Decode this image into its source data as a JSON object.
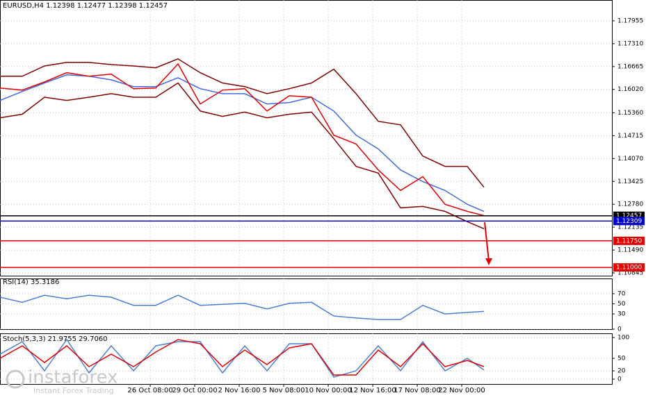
{
  "chart_data": [
    {
      "type": "line",
      "title": "EURUSD,H4  1.12398 1.12477 1.12398 1.12457",
      "x": [
        0,
        8,
        16,
        24,
        32,
        40,
        48,
        56,
        64,
        72,
        80,
        88,
        96,
        104,
        112,
        120,
        128,
        136,
        144,
        152,
        160,
        168,
        174
      ],
      "series": [
        {
          "color": "#800000",
          "values": [
            1.1639,
            1.1639,
            1.1668,
            1.1678,
            1.1678,
            1.1672,
            1.1668,
            1.1663,
            1.1688,
            1.1649,
            1.162,
            1.161,
            1.159,
            1.1604,
            1.162,
            1.1659,
            1.159,
            1.1512,
            1.1502,
            1.1414,
            1.1385,
            1.1385,
            1.1326
          ]
        },
        {
          "color": "#4169e1",
          "values": [
            1.1571,
            1.1596,
            1.162,
            1.1643,
            1.1639,
            1.1629,
            1.161,
            1.161,
            1.1635,
            1.1604,
            1.159,
            1.159,
            1.1561,
            1.1565,
            1.158,
            1.1541,
            1.1473,
            1.1434,
            1.1375,
            1.1342,
            1.1317,
            1.1278,
            1.1258
          ]
        },
        {
          "color": "#800000",
          "values": [
            1.1522,
            1.1532,
            1.158,
            1.1571,
            1.158,
            1.159,
            1.158,
            1.158,
            1.162,
            1.1541,
            1.1526,
            1.1538,
            1.1522,
            1.1532,
            1.1538,
            1.1463,
            1.1385,
            1.1366,
            1.1268,
            1.1272,
            1.1258,
            1.1229,
            1.1209
          ]
        },
        {
          "color": "#e00000",
          "values": [
            1.1606,
            1.16,
            1.1623,
            1.1649,
            1.1639,
            1.1645,
            1.1604,
            1.1606,
            1.1674,
            1.1561,
            1.16,
            1.1604,
            1.1541,
            1.1584,
            1.158,
            1.1473,
            1.1448,
            1.1375,
            1.1317,
            1.1356,
            1.1278,
            1.1258,
            1.1246
          ]
        }
      ],
      "xlim": [
        0,
        220
      ],
      "ylim": [
        1.10767,
        1.18541
      ],
      "grid": true,
      "yticks": [
        1.17955,
        {
          "value": 1.1731,
          "label": "1.17310"
        },
        1.16665,
        {
          "value": 1.1602,
          "label": "1.16020"
        },
        {
          "value": 1.1536,
          "label": "1.15360"
        },
        1.14715,
        {
          "value": 1.1407,
          "label": "1.14070"
        },
        1.13425,
        {
          "value": 1.1278,
          "label": "1.12780"
        },
        1.12135,
        {
          "value": 1.1149,
          "label": "1.11490"
        },
        1.10845
      ],
      "xticks": [
        {
          "value": 54,
          "label": "26 Oct 08:00"
        },
        {
          "value": 70,
          "label": "29 Oct 00:00"
        },
        {
          "value": 86,
          "label": "2 Nov 16:00"
        },
        {
          "value": 102,
          "label": "5 Nov 08:00"
        },
        {
          "value": 118,
          "label": "10 Nov 00:00"
        },
        {
          "value": 134,
          "label": "12 Nov 16:00"
        },
        {
          "value": 150,
          "label": "17 Nov 08:00"
        },
        {
          "value": 166,
          "label": "22 Nov 00:00"
        }
      ],
      "levels": [
        {
          "value": 1.12457,
          "label": "1.12457",
          "color": "#000000"
        },
        {
          "value": 1.12309,
          "label": "1.12309",
          "color": "#0000cd"
        },
        {
          "value": 1.1175,
          "label": "1.11750",
          "color": "#e00000"
        },
        {
          "value": 1.11,
          "label": "1.11000",
          "color": "#e00000"
        }
      ]
    },
    {
      "type": "line",
      "title": "RSI(14) 35.3186",
      "x": [
        0,
        8,
        16,
        24,
        32,
        40,
        48,
        56,
        64,
        72,
        80,
        88,
        96,
        104,
        112,
        120,
        128,
        136,
        144,
        152,
        160,
        168,
        174
      ],
      "series": [
        {
          "color": "#4a7fd6",
          "values": [
            63,
            53,
            67,
            60,
            67,
            63,
            47,
            47,
            67,
            47,
            49,
            51,
            40,
            51,
            53,
            26,
            22,
            19,
            19,
            47,
            30,
            33,
            35
          ]
        }
      ],
      "xlim": [
        0,
        220
      ],
      "ylim": [
        0,
        100
      ],
      "yticks": [
        70,
        50,
        30,
        0
      ],
      "grid": true
    },
    {
      "type": "line",
      "title": "Stoch(5,3,3) 21.9755 29.7060",
      "x": [
        0,
        8,
        16,
        24,
        32,
        40,
        48,
        56,
        64,
        72,
        80,
        88,
        96,
        104,
        112,
        120,
        128,
        136,
        144,
        152,
        160,
        168,
        174
      ],
      "series": [
        {
          "color": "#4a7fd6",
          "values": [
            60,
            90,
            20,
            95,
            15,
            80,
            20,
            80,
            90,
            90,
            15,
            80,
            20,
            85,
            85,
            5,
            20,
            80,
            20,
            90,
            20,
            50,
            22
          ]
        },
        {
          "color": "#e00000",
          "values": [
            50,
            80,
            40,
            80,
            30,
            60,
            30,
            65,
            95,
            85,
            30,
            70,
            35,
            75,
            85,
            10,
            10,
            70,
            30,
            85,
            30,
            45,
            30
          ]
        }
      ],
      "xlim": [
        0,
        220
      ],
      "ylim": [
        -11.7,
        110
      ],
      "yticks": [
        100,
        50,
        20,
        0
      ],
      "grid": true
    }
  ],
  "watermark": {
    "brand": "instaforex",
    "tagline": "Instant Forex Trading"
  }
}
